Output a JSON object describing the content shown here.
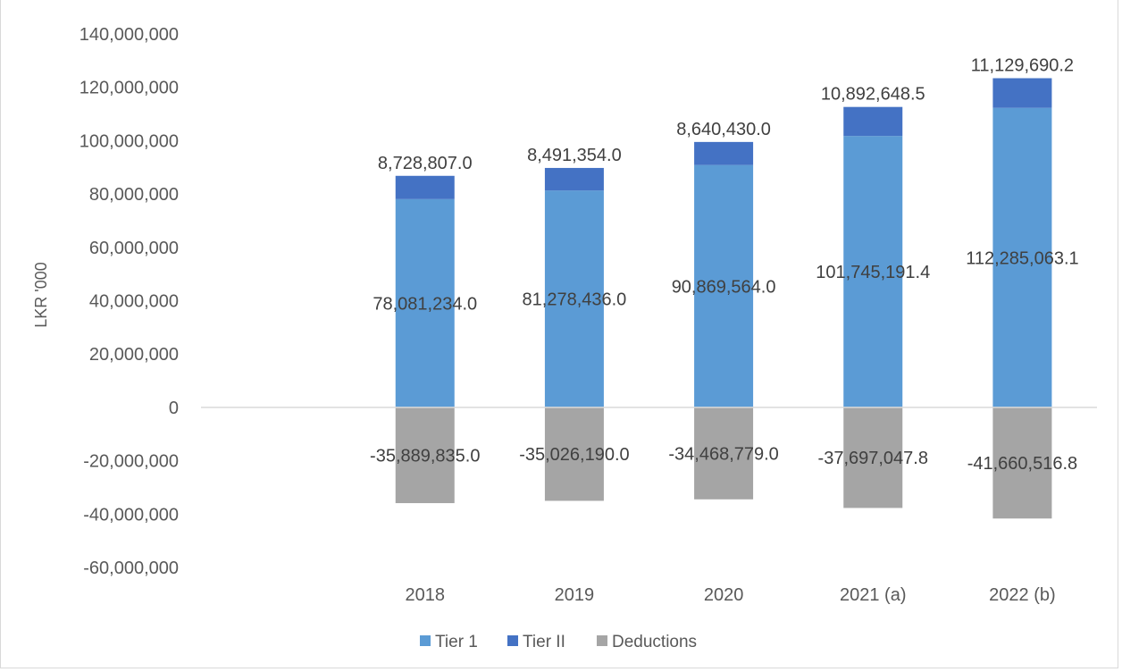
{
  "chart_data": {
    "type": "bar",
    "stacked": true,
    "title": "",
    "xlabel": "",
    "ylabel": "LKR '000",
    "categories": [
      "2018",
      "2019",
      "2020",
      "2021 (a)",
      "2022 (b)"
    ],
    "series": [
      {
        "name": "Tier 1",
        "color": "#5b9bd5",
        "values": [
          78081234.0,
          81278436.0,
          90869564.0,
          101745191.4,
          112285063.1
        ],
        "labels": [
          "78,081,234.0",
          "81,278,436.0",
          "90,869,564.0",
          "101,745,191.4",
          "112,285,063.1"
        ]
      },
      {
        "name": "Tier II",
        "color": "#4472c4",
        "values": [
          8728807.0,
          8491354.0,
          8640430.0,
          10892648.5,
          11129690.2
        ],
        "labels": [
          "8,728,807.0",
          "8,491,354.0",
          "8,640,430.0",
          "10,892,648.5",
          "11,129,690.2"
        ]
      },
      {
        "name": "Deductions",
        "color": "#a5a5a5",
        "values": [
          -35889835.0,
          -35026190.0,
          -34468779.0,
          -37697047.8,
          -41660516.8
        ],
        "labels": [
          "-35,889,835.0",
          "-35,026,190.0",
          "-34,468,779.0",
          "-37,697,047.8",
          "-41,660,516.8"
        ]
      }
    ],
    "ylim": [
      -60000000,
      140000000
    ],
    "yticks": [
      140000000,
      120000000,
      100000000,
      80000000,
      60000000,
      40000000,
      20000000,
      0,
      -20000000,
      -40000000,
      -60000000
    ],
    "ytick_labels": [
      "140,000,000",
      "120,000,000",
      "100,000,000",
      "80,000,000",
      "60,000,000",
      "40,000,000",
      "20,000,000",
      "0",
      "-20,000,000",
      "-40,000,000",
      "-60,000,000"
    ],
    "grid": false,
    "legend_position": "bottom"
  }
}
